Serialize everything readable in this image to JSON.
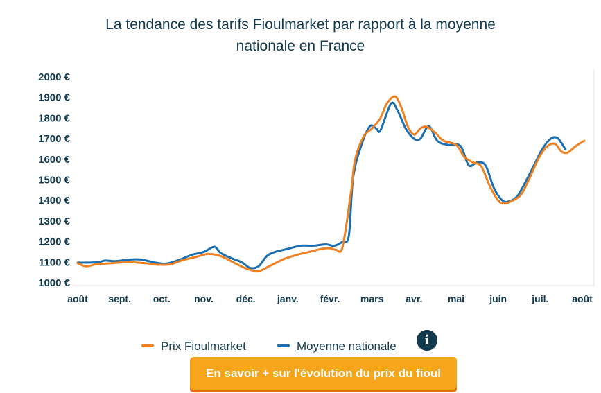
{
  "chart_data": {
    "type": "line",
    "title_line1": "La tendance des tarifs Fioulmarket par rapport à la moyenne",
    "title_line2": "nationale en France",
    "categories": [
      "août",
      "sept.",
      "oct.",
      "nov.",
      "déc.",
      "janv.",
      "févr.",
      "mars",
      "avr.",
      "mai",
      "juin",
      "juil.",
      "août"
    ],
    "y_ticks": [
      "1000 €",
      "1100 €",
      "1200 €",
      "1300 €",
      "1400 €",
      "1500 €",
      "1600 €",
      "1700 €",
      "1800 €",
      "1900 €",
      "2000 €"
    ],
    "ylim": [
      1000,
      2000
    ],
    "grid": false,
    "legend_position": "bottom",
    "series": [
      {
        "name": "Prix Fioulmarket",
        "color": "#f08020",
        "points": [
          [
            0,
            1095
          ],
          [
            0.2,
            1080
          ],
          [
            0.45,
            1090
          ],
          [
            0.8,
            1095
          ],
          [
            1.2,
            1100
          ],
          [
            1.6,
            1095
          ],
          [
            1.9,
            1088
          ],
          [
            2.2,
            1090
          ],
          [
            2.5,
            1110
          ],
          [
            2.8,
            1125
          ],
          [
            3.1,
            1140
          ],
          [
            3.4,
            1130
          ],
          [
            3.7,
            1100
          ],
          [
            4.0,
            1070
          ],
          [
            4.3,
            1057
          ],
          [
            4.6,
            1085
          ],
          [
            4.9,
            1115
          ],
          [
            5.2,
            1135
          ],
          [
            5.5,
            1150
          ],
          [
            5.8,
            1165
          ],
          [
            6.0,
            1168
          ],
          [
            6.15,
            1160
          ],
          [
            6.3,
            1175
          ],
          [
            6.5,
            1440
          ],
          [
            6.6,
            1600
          ],
          [
            6.8,
            1710
          ],
          [
            7.0,
            1750
          ],
          [
            7.2,
            1800
          ],
          [
            7.35,
            1870
          ],
          [
            7.55,
            1905
          ],
          [
            7.7,
            1850
          ],
          [
            7.85,
            1760
          ],
          [
            8.0,
            1720
          ],
          [
            8.15,
            1750
          ],
          [
            8.3,
            1758
          ],
          [
            8.5,
            1730
          ],
          [
            8.7,
            1690
          ],
          [
            9.0,
            1670
          ],
          [
            9.2,
            1610
          ],
          [
            9.4,
            1585
          ],
          [
            9.6,
            1565
          ],
          [
            9.8,
            1470
          ],
          [
            10.0,
            1400
          ],
          [
            10.15,
            1385
          ],
          [
            10.35,
            1400
          ],
          [
            10.55,
            1430
          ],
          [
            10.75,
            1510
          ],
          [
            10.95,
            1600
          ],
          [
            11.15,
            1660
          ],
          [
            11.35,
            1675
          ],
          [
            11.5,
            1638
          ],
          [
            11.65,
            1632
          ],
          [
            11.85,
            1665
          ],
          [
            12.05,
            1690
          ]
        ]
      },
      {
        "name": "Moyenne nationale",
        "color": "#1c6fb0",
        "points": [
          [
            0,
            1098
          ],
          [
            0.2,
            1098
          ],
          [
            0.5,
            1100
          ],
          [
            0.65,
            1108
          ],
          [
            0.9,
            1105
          ],
          [
            1.2,
            1112
          ],
          [
            1.5,
            1113
          ],
          [
            1.8,
            1100
          ],
          [
            2.1,
            1093
          ],
          [
            2.4,
            1110
          ],
          [
            2.7,
            1135
          ],
          [
            3.0,
            1150
          ],
          [
            3.25,
            1175
          ],
          [
            3.4,
            1145
          ],
          [
            3.65,
            1120
          ],
          [
            3.9,
            1100
          ],
          [
            4.1,
            1072
          ],
          [
            4.3,
            1080
          ],
          [
            4.5,
            1130
          ],
          [
            4.7,
            1150
          ],
          [
            5.0,
            1165
          ],
          [
            5.3,
            1180
          ],
          [
            5.6,
            1180
          ],
          [
            5.9,
            1187
          ],
          [
            6.1,
            1180
          ],
          [
            6.3,
            1200
          ],
          [
            6.45,
            1230
          ],
          [
            6.55,
            1510
          ],
          [
            6.75,
            1670
          ],
          [
            6.95,
            1760
          ],
          [
            7.1,
            1750
          ],
          [
            7.2,
            1740
          ],
          [
            7.45,
            1870
          ],
          [
            7.6,
            1840
          ],
          [
            7.8,
            1750
          ],
          [
            8.0,
            1700
          ],
          [
            8.15,
            1700
          ],
          [
            8.35,
            1760
          ],
          [
            8.55,
            1690
          ],
          [
            8.8,
            1670
          ],
          [
            9.1,
            1665
          ],
          [
            9.3,
            1570
          ],
          [
            9.5,
            1585
          ],
          [
            9.7,
            1570
          ],
          [
            9.9,
            1460
          ],
          [
            10.1,
            1400
          ],
          [
            10.25,
            1395
          ],
          [
            10.45,
            1420
          ],
          [
            10.65,
            1490
          ],
          [
            10.85,
            1570
          ],
          [
            11.05,
            1650
          ],
          [
            11.25,
            1700
          ],
          [
            11.4,
            1705
          ],
          [
            11.5,
            1680
          ],
          [
            11.6,
            1648
          ]
        ]
      }
    ]
  },
  "legend": {
    "fioulmarket_label": "Prix Fioulmarket",
    "nationale_label": "Moyenne nationale",
    "info_icon": "info-icon",
    "info_symbol": "i"
  },
  "cta": {
    "label": "En savoir + sur l'évolution du prix du fioul"
  }
}
